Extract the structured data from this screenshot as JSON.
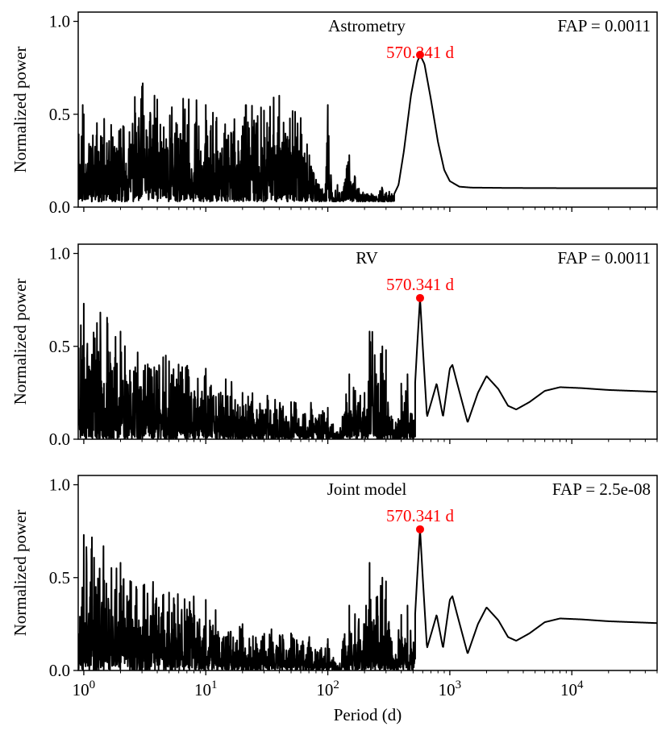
{
  "figure": {
    "xlabel": "Period (d)"
  },
  "chart_data": [
    {
      "type": "line",
      "title": "Astrometry",
      "fap_label": "FAP = 0.0011",
      "peak_label": "570.341 d",
      "peak": {
        "period": 570.341,
        "power": 0.82
      },
      "xscale": "log",
      "xlim": [
        0.9,
        50000
      ],
      "ylim": [
        0.0,
        1.05
      ],
      "ylabel": "Normalized power",
      "xlabel": "Period (d)",
      "yticks": [
        0.0,
        0.5,
        1.0
      ],
      "ytick_labels": [
        "0.0",
        "0.5",
        "1.0"
      ],
      "noise": {
        "from": 0.9,
        "to": 350,
        "min": 0.03,
        "max": 0.58,
        "seed": 11
      },
      "anchors": [
        [
          0.98,
          0.55
        ],
        [
          1.0,
          0.5
        ],
        [
          2.0,
          0.42
        ],
        [
          3.0,
          0.65
        ],
        [
          4.0,
          0.58
        ],
        [
          10.0,
          0.55
        ],
        [
          30.0,
          0.52
        ],
        [
          40.0,
          0.6
        ],
        [
          60.0,
          0.48
        ],
        [
          95.0,
          0.05
        ],
        [
          100.0,
          0.55
        ],
        [
          110.0,
          0.05
        ],
        [
          120.0,
          0.12
        ],
        [
          130.0,
          0.08
        ],
        [
          150.0,
          0.28
        ],
        [
          180.0,
          0.1
        ],
        [
          220.0,
          0.05
        ],
        [
          280.0,
          0.1
        ],
        [
          350.0,
          0.07
        ],
        [
          380.0,
          0.12
        ],
        [
          420.0,
          0.3
        ],
        [
          480.0,
          0.6
        ],
        [
          540.0,
          0.78
        ],
        [
          570.341,
          0.82
        ],
        [
          620.0,
          0.77
        ],
        [
          700.0,
          0.58
        ],
        [
          800.0,
          0.35
        ],
        [
          900.0,
          0.2
        ],
        [
          1000.0,
          0.14
        ],
        [
          1200.0,
          0.11
        ],
        [
          1500.0,
          0.105
        ],
        [
          3000.0,
          0.103
        ],
        [
          10000.0,
          0.102
        ],
        [
          50000.0,
          0.102
        ]
      ]
    },
    {
      "type": "line",
      "title": "RV",
      "fap_label": "FAP = 0.0011",
      "peak_label": "570.341 d",
      "peak": {
        "period": 570.341,
        "power": 0.76
      },
      "xscale": "log",
      "xlim": [
        0.9,
        50000
      ],
      "ylim": [
        0.0,
        1.05
      ],
      "ylabel": "Normalized power",
      "xlabel": "Period (d)",
      "yticks": [
        0.0,
        0.5,
        1.0
      ],
      "ytick_labels": [
        "0.0",
        "0.5",
        "1.0"
      ],
      "noise": {
        "from": 0.9,
        "to": 520,
        "min": 0.0,
        "max": 0.48,
        "seed": 23
      },
      "anchors": [
        [
          1.0,
          0.73
        ],
        [
          2.0,
          0.58
        ],
        [
          5.0,
          0.42
        ],
        [
          10.0,
          0.38
        ],
        [
          20.0,
          0.25
        ],
        [
          50.0,
          0.2
        ],
        [
          100.0,
          0.17
        ],
        [
          120.0,
          0.02
        ],
        [
          150.0,
          0.35
        ],
        [
          200.0,
          0.25
        ],
        [
          220.0,
          0.58
        ],
        [
          280.0,
          0.5
        ],
        [
          300.0,
          0.48
        ],
        [
          350.0,
          0.05
        ],
        [
          400.0,
          0.3
        ],
        [
          450.0,
          0.35
        ],
        [
          500.0,
          0.1
        ],
        [
          540.0,
          0.5
        ],
        [
          570.341,
          0.76
        ],
        [
          600.0,
          0.5
        ],
        [
          650.0,
          0.12
        ],
        [
          720.0,
          0.22
        ],
        [
          780.0,
          0.3
        ],
        [
          880.0,
          0.12
        ],
        [
          1000.0,
          0.38
        ],
        [
          1050.0,
          0.4
        ],
        [
          1150.0,
          0.3
        ],
        [
          1400.0,
          0.09
        ],
        [
          1700.0,
          0.25
        ],
        [
          2000.0,
          0.34
        ],
        [
          2500.0,
          0.27
        ],
        [
          3000.0,
          0.18
        ],
        [
          3500.0,
          0.16
        ],
        [
          4500.0,
          0.2
        ],
        [
          6000.0,
          0.26
        ],
        [
          8000.0,
          0.28
        ],
        [
          12000.0,
          0.275
        ],
        [
          20000.0,
          0.265
        ],
        [
          50000.0,
          0.255
        ]
      ]
    },
    {
      "type": "line",
      "title": "Joint model",
      "fap_label": "FAP = 2.5e-08",
      "peak_label": "570.341 d",
      "peak": {
        "period": 570.341,
        "power": 0.76
      },
      "xscale": "log",
      "xlim": [
        0.9,
        50000
      ],
      "ylim": [
        0.0,
        1.05
      ],
      "ylabel": "Normalized power",
      "xlabel": "Period (d)",
      "yticks": [
        0.0,
        0.5,
        1.0
      ],
      "ytick_labels": [
        "0.0",
        "0.5",
        "1.0"
      ],
      "xticks": [
        1,
        10,
        100,
        1000,
        10000
      ],
      "xtick_labels": [
        {
          "base": "10",
          "exp": "0"
        },
        {
          "base": "10",
          "exp": "1"
        },
        {
          "base": "10",
          "exp": "2"
        },
        {
          "base": "10",
          "exp": "3"
        },
        {
          "base": "10",
          "exp": "4"
        }
      ],
      "noise": {
        "from": 0.9,
        "to": 520,
        "min": 0.0,
        "max": 0.48,
        "seed": 37
      },
      "anchors": [
        [
          1.0,
          0.73
        ],
        [
          2.0,
          0.58
        ],
        [
          5.0,
          0.42
        ],
        [
          10.0,
          0.38
        ],
        [
          20.0,
          0.25
        ],
        [
          50.0,
          0.2
        ],
        [
          100.0,
          0.17
        ],
        [
          120.0,
          0.02
        ],
        [
          150.0,
          0.35
        ],
        [
          200.0,
          0.25
        ],
        [
          220.0,
          0.58
        ],
        [
          280.0,
          0.5
        ],
        [
          300.0,
          0.48
        ],
        [
          350.0,
          0.05
        ],
        [
          400.0,
          0.3
        ],
        [
          450.0,
          0.35
        ],
        [
          500.0,
          0.1
        ],
        [
          540.0,
          0.5
        ],
        [
          570.341,
          0.76
        ],
        [
          600.0,
          0.5
        ],
        [
          650.0,
          0.12
        ],
        [
          720.0,
          0.22
        ],
        [
          780.0,
          0.3
        ],
        [
          880.0,
          0.12
        ],
        [
          1000.0,
          0.38
        ],
        [
          1050.0,
          0.4
        ],
        [
          1150.0,
          0.3
        ],
        [
          1400.0,
          0.09
        ],
        [
          1700.0,
          0.25
        ],
        [
          2000.0,
          0.34
        ],
        [
          2500.0,
          0.27
        ],
        [
          3000.0,
          0.18
        ],
        [
          3500.0,
          0.16
        ],
        [
          4500.0,
          0.2
        ],
        [
          6000.0,
          0.26
        ],
        [
          8000.0,
          0.28
        ],
        [
          12000.0,
          0.275
        ],
        [
          20000.0,
          0.265
        ],
        [
          50000.0,
          0.255
        ]
      ]
    }
  ],
  "colors": {
    "line": "#000000",
    "peak": "#ff0000",
    "axis": "#000000"
  }
}
